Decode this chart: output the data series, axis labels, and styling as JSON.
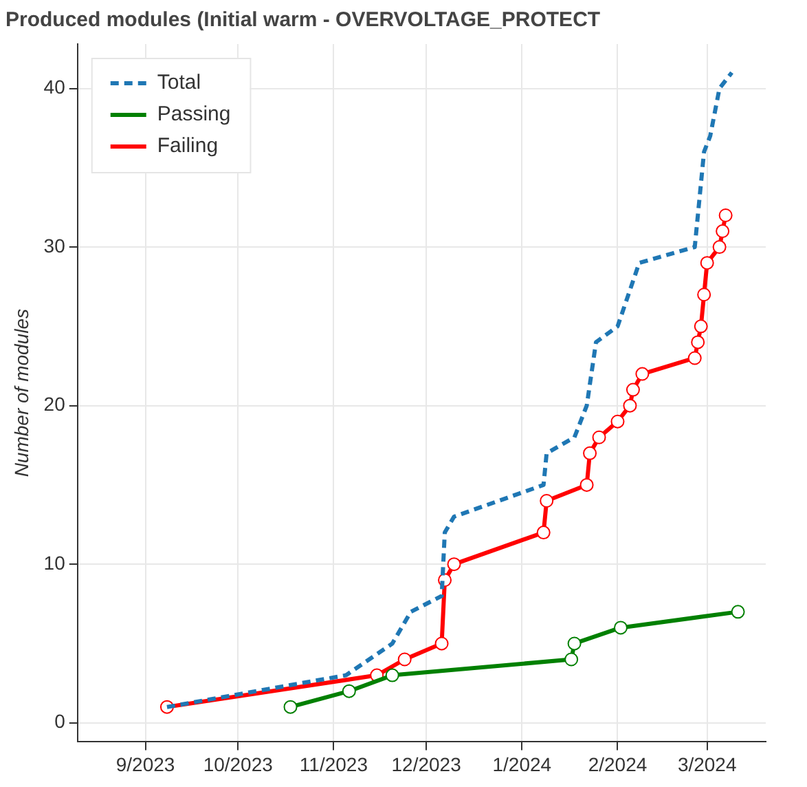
{
  "chart_data": {
    "type": "line",
    "title": "Produced modules (Initial warm - OVERVOLTAGE_PROTECT",
    "ylabel": "Number of modules",
    "xlim": [
      "2023-08-10",
      "2024-03-20"
    ],
    "xticks": [
      {
        "value": "2023-09-01",
        "label": "9/2023"
      },
      {
        "value": "2023-10-01",
        "label": "10/2023"
      },
      {
        "value": "2023-11-01",
        "label": "11/2023"
      },
      {
        "value": "2023-12-01",
        "label": "12/2023"
      },
      {
        "value": "2024-01-01",
        "label": "1/2024"
      },
      {
        "value": "2024-02-01",
        "label": "2/2024"
      },
      {
        "value": "2024-03-01",
        "label": "3/2024"
      }
    ],
    "ylim": [
      -1.2,
      42.8
    ],
    "yticks": [
      0,
      10,
      20,
      30,
      40
    ],
    "grid": true,
    "legend": "top left",
    "series": [
      {
        "name": "Total",
        "color": "#1f77b4",
        "line_style": "dashed",
        "marker": "none",
        "x": [
          "2023-09-08",
          "2023-11-05",
          "2023-11-20",
          "2023-11-26",
          "2023-12-06",
          "2023-12-07",
          "2023-12-10",
          "2024-01-08",
          "2024-01-09",
          "2024-01-18",
          "2024-01-22",
          "2024-01-25",
          "2024-02-01",
          "2024-02-08",
          "2024-02-26",
          "2024-02-29",
          "2024-03-02",
          "2024-03-05",
          "2024-03-09"
        ],
        "values": [
          1,
          3,
          5,
          7,
          8,
          12,
          13,
          15,
          17,
          18,
          20,
          24,
          25,
          29,
          30,
          36,
          37,
          40,
          41
        ]
      },
      {
        "name": "Passing",
        "color": "#008000",
        "line_style": "solid",
        "marker": "circle",
        "x": [
          "2023-10-18",
          "2023-11-06",
          "2023-11-20",
          "2024-01-17",
          "2024-01-18",
          "2024-02-02",
          "2024-03-11"
        ],
        "values": [
          1,
          2,
          3,
          4,
          5,
          6,
          7
        ]
      },
      {
        "name": "Failing",
        "color": "#ff0000",
        "line_style": "solid",
        "marker": "circle",
        "x": [
          "2023-09-08",
          "2023-11-15",
          "2023-11-24",
          "2023-12-06",
          "2023-12-07",
          "2023-12-10",
          "2024-01-08",
          "2024-01-09",
          "2024-01-22",
          "2024-01-23",
          "2024-01-26",
          "2024-02-01",
          "2024-02-05",
          "2024-02-06",
          "2024-02-09",
          "2024-02-26",
          "2024-02-27",
          "2024-02-28",
          "2024-02-29",
          "2024-03-01",
          "2024-03-05",
          "2024-03-06",
          "2024-03-07"
        ],
        "values": [
          1,
          3,
          4,
          5,
          9,
          10,
          12,
          14,
          15,
          17,
          18,
          19,
          20,
          21,
          22,
          23,
          24,
          25,
          27,
          29,
          30,
          31,
          32
        ]
      }
    ]
  }
}
